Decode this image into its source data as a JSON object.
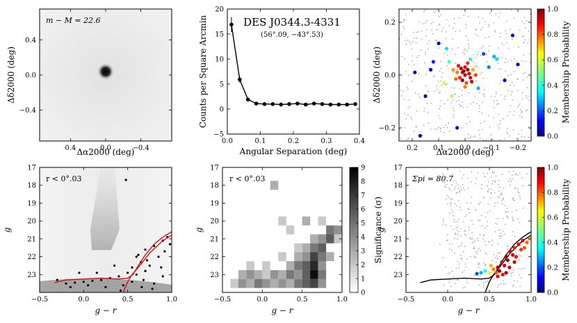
{
  "chart_data": [
    {
      "panel": "spatial-density-map",
      "type": "heatmap",
      "annotation": "m − M = 22.6",
      "xlabel": "Δα2000 (deg)",
      "ylabel": "Δδ2000 (deg)",
      "xlim": [
        0.75,
        -0.75
      ],
      "ylim": [
        -0.75,
        0.75
      ],
      "xticks": [
        "0.4",
        "0.0",
        "−0.4"
      ],
      "xtick_values": [
        0.4,
        0.0,
        -0.4
      ],
      "yticks": [
        "0.4",
        "0.0",
        "−0.4"
      ],
      "ytick_values": [
        0.4,
        0.0,
        -0.4
      ],
      "peak": {
        "x": 0.0,
        "y": 0.0
      }
    },
    {
      "panel": "radial-profile",
      "type": "line",
      "title": "DES J0344.3-4331",
      "subtitle": "(56°.09, −43°.53)",
      "xlabel": "Angular Separation (deg)",
      "ylabel": "Counts per Square Arcmin",
      "xlim": [
        0,
        0.4
      ],
      "ylim": [
        -5,
        20
      ],
      "xticks": [
        "0.0",
        "0.1",
        "0.2",
        "0.3",
        "0.4"
      ],
      "xtick_values": [
        0,
        0.1,
        0.2,
        0.3,
        0.4
      ],
      "yticks": [
        "−5",
        "0",
        "5",
        "10",
        "15",
        "20"
      ],
      "ytick_values": [
        -5,
        0,
        5,
        10,
        15,
        20
      ],
      "x": [
        0.0125,
        0.0375,
        0.0625,
        0.0875,
        0.1125,
        0.1375,
        0.1625,
        0.1875,
        0.2125,
        0.2375,
        0.2625,
        0.2875,
        0.3125,
        0.3375,
        0.3625,
        0.3875
      ],
      "y": [
        16.9,
        5.9,
        1.9,
        1.1,
        1.0,
        1.0,
        0.9,
        1.0,
        1.1,
        0.9,
        1.1,
        1.0,
        0.9,
        0.9,
        0.9,
        1.0
      ],
      "yerr": [
        1.5,
        0.6,
        0.3,
        0.25,
        0.2,
        0.2,
        0.15,
        0.15,
        0.15,
        0.1,
        0.1,
        0.1,
        0.1,
        0.1,
        0.1,
        0.1
      ]
    },
    {
      "panel": "spatial-members",
      "type": "scatter",
      "xlabel": "Δα2000 (deg)",
      "ylabel": "Δδ2000 (deg)",
      "colorbar_label": "Membership Probability",
      "xlim": [
        0.25,
        -0.25
      ],
      "ylim": [
        -0.25,
        0.25
      ],
      "xticks": [
        "0.2",
        "0.1",
        "0.0",
        "−0.1",
        "−0.2"
      ],
      "xtick_values": [
        0.2,
        0.1,
        0.0,
        -0.1,
        -0.2
      ],
      "yticks": [
        "0.2",
        "0.0",
        "−0.2"
      ],
      "ytick_values": [
        0.2,
        0.0,
        -0.2
      ],
      "cbar_ticks": [
        "0.0",
        "0.2",
        "0.4",
        "0.6",
        "0.8",
        "1.0"
      ],
      "cbar_tick_values": [
        0.0,
        0.2,
        0.4,
        0.6,
        0.8,
        1.0
      ],
      "members": [
        [
          0.0,
          0.0,
          0.95
        ],
        [
          0.01,
          0.01,
          0.9
        ],
        [
          -0.01,
          0.02,
          0.98
        ],
        [
          0.02,
          -0.01,
          0.85
        ],
        [
          -0.02,
          -0.01,
          0.92
        ],
        [
          0.0,
          0.03,
          0.88
        ],
        [
          0.01,
          -0.02,
          0.97
        ],
        [
          -0.015,
          0.005,
          0.9
        ],
        [
          0.03,
          0.01,
          0.75
        ],
        [
          -0.03,
          0.02,
          0.7
        ],
        [
          0.015,
          0.025,
          0.93
        ],
        [
          -0.005,
          -0.03,
          0.8
        ],
        [
          0.025,
          0.035,
          0.86
        ],
        [
          -0.025,
          -0.025,
          0.91
        ],
        [
          0.005,
          0.015,
          0.99
        ],
        [
          0.035,
          -0.015,
          0.78
        ],
        [
          -0.04,
          0.0,
          0.82
        ],
        [
          0.045,
          0.02,
          0.72
        ],
        [
          -0.01,
          0.045,
          0.84
        ],
        [
          0.0,
          -0.045,
          0.76
        ],
        [
          0.06,
          0.05,
          0.45
        ],
        [
          -0.05,
          -0.05,
          0.3
        ],
        [
          0.08,
          -0.03,
          0.6
        ],
        [
          -0.07,
          0.08,
          0.2
        ],
        [
          0.12,
          0.05,
          0.15
        ],
        [
          -0.12,
          0.06,
          0.35
        ],
        [
          0.15,
          -0.08,
          0.05
        ],
        [
          -0.15,
          -0.02,
          0.1
        ],
        [
          0.17,
          -0.23,
          0.05
        ],
        [
          0.03,
          -0.2,
          0.08
        ],
        [
          0.19,
          0.01,
          0.05
        ],
        [
          -0.2,
          0.04,
          0.1
        ],
        [
          -0.18,
          0.15,
          0.08
        ],
        [
          0.1,
          0.12,
          0.12
        ],
        [
          -0.02,
          0.06,
          0.4
        ],
        [
          0.05,
          -0.08,
          0.55
        ],
        [
          -0.09,
          0.03,
          0.25
        ],
        [
          0.13,
          0.02,
          0.1
        ],
        [
          0.07,
          0.1,
          0.35
        ],
        [
          -0.11,
          0.07,
          0.3
        ]
      ]
    },
    {
      "panel": "cmd-stellar-density",
      "type": "scatter",
      "annotation": "r < 0°.03",
      "xlabel": "g − r",
      "ylabel": "g",
      "xlim": [
        -0.5,
        1.0
      ],
      "ylim": [
        24,
        17
      ],
      "xticks": [
        "−0.5",
        "0.0",
        "0.5",
        "1.0"
      ],
      "xtick_values": [
        -0.5,
        0.0,
        0.5,
        1.0
      ],
      "yticks": [
        "17",
        "18",
        "19",
        "20",
        "21",
        "22",
        "23"
      ],
      "ytick_values": [
        17,
        18,
        19,
        20,
        21,
        22,
        23
      ],
      "stars": [
        [
          0.6,
          22.0
        ],
        [
          0.7,
          21.6
        ],
        [
          0.8,
          21.4
        ],
        [
          0.9,
          21.1
        ],
        [
          0.95,
          20.9
        ],
        [
          0.65,
          22.3
        ],
        [
          0.55,
          22.6
        ],
        [
          0.5,
          22.9
        ],
        [
          0.4,
          23.1
        ],
        [
          0.3,
          23.2
        ],
        [
          0.2,
          23.3
        ],
        [
          0.1,
          23.35
        ],
        [
          0.0,
          23.4
        ],
        [
          -0.1,
          23.45
        ],
        [
          -0.2,
          23.5
        ],
        [
          -0.3,
          23.3
        ],
        [
          0.6,
          23.0
        ],
        [
          0.7,
          22.8
        ],
        [
          0.75,
          22.5
        ],
        [
          0.85,
          22.0
        ],
        [
          0.92,
          21.7
        ],
        [
          0.68,
          23.3
        ],
        [
          0.8,
          23.5
        ],
        [
          0.9,
          23.1
        ],
        [
          0.45,
          23.6
        ],
        [
          0.25,
          23.7
        ],
        [
          0.05,
          23.6
        ],
        [
          -0.15,
          23.7
        ],
        [
          0.62,
          21.9
        ],
        [
          0.72,
          22.2
        ],
        [
          0.35,
          22.5
        ],
        [
          0.15,
          22.9
        ],
        [
          0.55,
          23.4
        ],
        [
          0.78,
          23.8
        ],
        [
          0.98,
          21.3
        ],
        [
          0.88,
          22.6
        ],
        [
          0.48,
          17.7
        ],
        [
          0.42,
          23.9
        ],
        [
          -0.05,
          22.9
        ],
        [
          0.66,
          23.7
        ]
      ],
      "isochrone_rgb": [
        [
          1.0,
          20.6
        ],
        [
          0.9,
          20.9
        ],
        [
          0.8,
          21.3
        ],
        [
          0.7,
          21.9
        ],
        [
          0.62,
          22.5
        ],
        [
          0.56,
          23.0
        ],
        [
          0.5,
          23.2
        ],
        [
          0.4,
          23.25
        ],
        [
          0.2,
          23.2
        ],
        [
          0.0,
          23.25
        ],
        [
          -0.2,
          23.3
        ],
        [
          -0.33,
          23.45
        ]
      ],
      "isochrone_ms": [
        [
          0.45,
          24.0
        ],
        [
          0.5,
          23.4
        ],
        [
          0.55,
          23.0
        ],
        [
          0.62,
          22.6
        ],
        [
          0.75,
          21.8
        ],
        [
          0.9,
          21.1
        ],
        [
          1.0,
          20.8
        ]
      ]
    },
    {
      "panel": "cmd-significance",
      "type": "heatmap",
      "annotation": "r < 0°.03",
      "xlabel": "g − r",
      "ylabel": "g",
      "colorbar_label": "Significance (σ)",
      "xlim": [
        -0.5,
        1.0
      ],
      "ylim": [
        24,
        17
      ],
      "xticks": [
        "−0.5",
        "0.0",
        "0.5",
        "1.0"
      ],
      "xtick_values": [
        -0.5,
        0.0,
        0.5,
        1.0
      ],
      "yticks": [
        "17",
        "18",
        "19",
        "20",
        "21",
        "22",
        "23"
      ],
      "ytick_values": [
        17,
        18,
        19,
        20,
        21,
        22,
        23
      ],
      "cbar_ticks": [
        "0",
        "1",
        "2",
        "3",
        "4",
        "5",
        "6",
        "7",
        "8",
        "9"
      ],
      "cbar_tick_values": [
        0,
        1,
        2,
        3,
        4,
        5,
        6,
        7,
        8,
        9
      ],
      "cells": [
        [
          0.15,
          18.0,
          3
        ],
        [
          0.25,
          20.0,
          2
        ],
        [
          0.35,
          20.5,
          2
        ],
        [
          0.55,
          20.0,
          3
        ],
        [
          0.75,
          20.0,
          2
        ],
        [
          0.85,
          20.5,
          5
        ],
        [
          0.95,
          20.5,
          4
        ],
        [
          0.65,
          21.0,
          3
        ],
        [
          0.75,
          21.0,
          4
        ],
        [
          0.85,
          21.0,
          6
        ],
        [
          0.45,
          21.5,
          2
        ],
        [
          0.55,
          21.5,
          3
        ],
        [
          0.65,
          21.5,
          5
        ],
        [
          0.75,
          21.5,
          6
        ],
        [
          0.95,
          21.0,
          2
        ],
        [
          0.25,
          22.0,
          2
        ],
        [
          0.45,
          22.0,
          3
        ],
        [
          0.55,
          22.0,
          4
        ],
        [
          0.65,
          22.0,
          7
        ],
        [
          0.75,
          22.0,
          5
        ],
        [
          0.85,
          22.0,
          3
        ],
        [
          -0.15,
          22.5,
          2
        ],
        [
          0.05,
          22.5,
          2
        ],
        [
          0.35,
          22.5,
          3
        ],
        [
          0.45,
          22.5,
          5
        ],
        [
          0.55,
          22.5,
          6
        ],
        [
          0.65,
          22.5,
          8
        ],
        [
          0.75,
          22.5,
          4
        ],
        [
          -0.25,
          23.0,
          3
        ],
        [
          -0.15,
          23.0,
          4
        ],
        [
          -0.05,
          23.0,
          3
        ],
        [
          0.05,
          23.0,
          2
        ],
        [
          0.15,
          23.0,
          4
        ],
        [
          0.25,
          23.0,
          3
        ],
        [
          0.35,
          23.0,
          5
        ],
        [
          0.45,
          23.0,
          4
        ],
        [
          0.55,
          23.0,
          6
        ],
        [
          0.65,
          23.0,
          9
        ],
        [
          0.75,
          23.0,
          5
        ],
        [
          -0.35,
          23.5,
          2
        ],
        [
          -0.25,
          23.5,
          4
        ],
        [
          -0.15,
          23.5,
          3
        ],
        [
          -0.05,
          23.5,
          5
        ],
        [
          0.05,
          23.5,
          4
        ],
        [
          0.15,
          23.5,
          3
        ],
        [
          0.25,
          23.5,
          4
        ],
        [
          0.35,
          23.5,
          3
        ],
        [
          0.45,
          23.5,
          5
        ],
        [
          0.55,
          23.5,
          6
        ],
        [
          0.65,
          23.5,
          7
        ],
        [
          0.75,
          23.5,
          4
        ]
      ]
    },
    {
      "panel": "cmd-members",
      "type": "scatter",
      "annotation": "Σpi = 80.7",
      "xlabel": "g − r",
      "ylabel": "g",
      "colorbar_label": "Membership Probability",
      "xlim": [
        -0.5,
        1.0
      ],
      "ylim": [
        24,
        17
      ],
      "xticks": [
        "−0.5",
        "0.0",
        "0.5",
        "1.0"
      ],
      "xtick_values": [
        -0.5,
        0.0,
        0.5,
        1.0
      ],
      "yticks": [
        "17",
        "18",
        "19",
        "20",
        "21",
        "22",
        "23"
      ],
      "ytick_values": [
        17,
        18,
        19,
        20,
        21,
        22,
        23
      ],
      "cbar_ticks": [
        "0.0",
        "0.2",
        "0.4",
        "0.6",
        "0.8",
        "1.0"
      ],
      "cbar_tick_values": [
        0.0,
        0.2,
        0.4,
        0.6,
        0.8,
        1.0
      ],
      "members": [
        [
          0.6,
          22.6,
          0.95
        ],
        [
          0.65,
          22.3,
          0.9
        ],
        [
          0.7,
          22.0,
          0.98
        ],
        [
          0.75,
          21.7,
          0.92
        ],
        [
          0.8,
          21.5,
          0.85
        ],
        [
          0.85,
          21.3,
          0.88
        ],
        [
          0.9,
          21.1,
          0.9
        ],
        [
          0.62,
          22.8,
          0.97
        ],
        [
          0.68,
          22.5,
          0.93
        ],
        [
          0.72,
          22.2,
          0.96
        ],
        [
          0.78,
          21.9,
          0.91
        ],
        [
          0.58,
          22.9,
          0.8
        ],
        [
          0.55,
          22.7,
          0.75
        ],
        [
          0.66,
          23.0,
          0.87
        ],
        [
          0.74,
          22.6,
          0.9
        ],
        [
          0.82,
          22.0,
          0.86
        ],
        [
          0.88,
          21.6,
          0.83
        ],
        [
          0.95,
          21.2,
          0.78
        ],
        [
          0.5,
          22.9,
          0.6
        ],
        [
          0.45,
          22.8,
          0.4
        ],
        [
          0.4,
          22.9,
          0.3
        ],
        [
          0.35,
          22.95,
          0.2
        ],
        [
          0.52,
          22.5,
          0.7
        ],
        [
          0.7,
          22.9,
          0.95
        ],
        [
          0.6,
          23.1,
          0.89
        ],
        [
          0.8,
          22.3,
          0.92
        ],
        [
          0.92,
          21.5,
          0.8
        ],
        [
          0.98,
          21.0,
          0.7
        ]
      ],
      "isochrone_rgb": [
        [
          1.0,
          20.6
        ],
        [
          0.9,
          20.9
        ],
        [
          0.8,
          21.3
        ],
        [
          0.7,
          21.9
        ],
        [
          0.62,
          22.5
        ],
        [
          0.56,
          23.0
        ],
        [
          0.5,
          23.2
        ],
        [
          0.4,
          23.25
        ],
        [
          0.2,
          23.2
        ],
        [
          0.0,
          23.25
        ],
        [
          -0.2,
          23.3
        ],
        [
          -0.33,
          23.45
        ]
      ],
      "isochrone_ms": [
        [
          0.45,
          24.0
        ],
        [
          0.5,
          23.4
        ],
        [
          0.55,
          23.0
        ],
        [
          0.62,
          22.6
        ],
        [
          0.75,
          21.8
        ],
        [
          0.9,
          21.1
        ],
        [
          1.0,
          20.8
        ]
      ]
    }
  ]
}
